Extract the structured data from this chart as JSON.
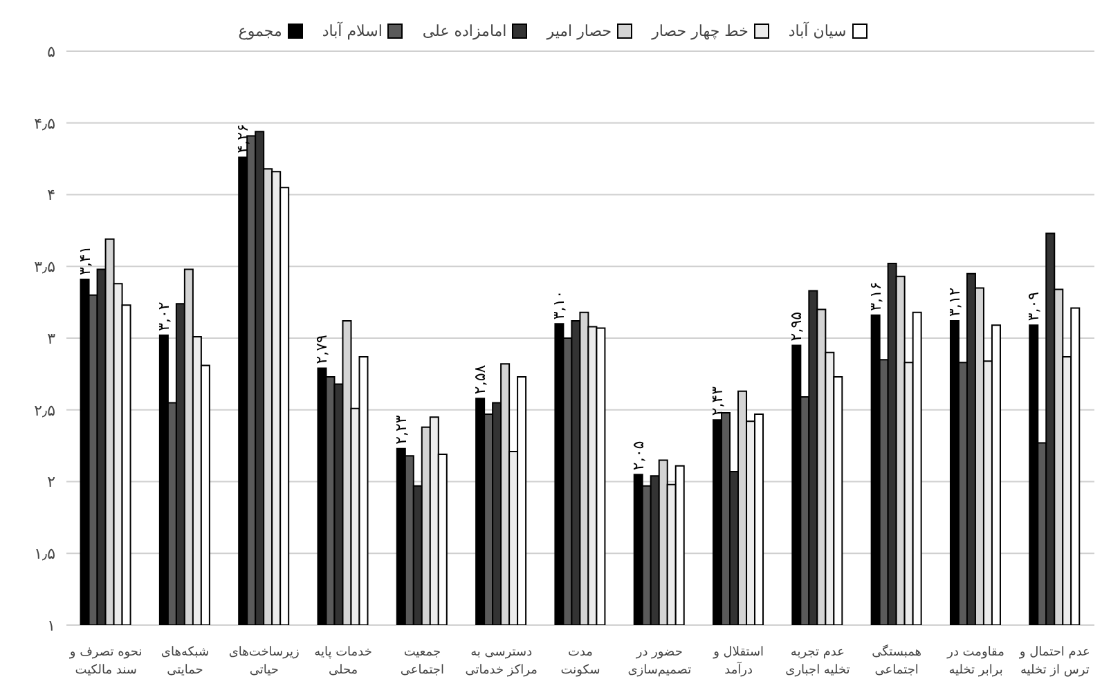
{
  "chart_data": {
    "type": "bar",
    "categories": [
      "نحوه تصرف و سند مالکیت",
      "شبکه‌های حمایتی",
      "زیرساخت‌های حیاتی",
      "خدمات پایه محلی",
      "جمعیت اجتماعی",
      "دسترسی به مراکز خدماتی",
      "مدت سکونت",
      "حضور در تصمیم‌سازی",
      "استقلال و درآمد",
      "عدم تجربه تخلیه اجباری",
      "همبستگی اجتماعی",
      "مقاومت در برابر تخلیه",
      "عدم احتمال و ترس از تخلیه"
    ],
    "series": [
      {
        "name": "مجموع",
        "color": "#000000",
        "values": [
          3.41,
          3.02,
          4.26,
          2.79,
          2.23,
          2.58,
          3.1,
          2.05,
          2.43,
          2.95,
          3.16,
          3.12,
          3.09
        ],
        "value_labels": [
          "۳,۴۱",
          "۳,۰۲",
          "۴,۲۶",
          "۲,۷۹",
          "۲,۲۳",
          "۲,۵۸",
          "۳,۱۰",
          "۲,۰۵",
          "۲,۴۳",
          "۲,۹۵",
          "۳,۱۶",
          "۳,۱۲",
          "۳,۰۹"
        ]
      },
      {
        "name": "اسلام آباد",
        "color": "#5a5a5a",
        "values": [
          3.3,
          2.55,
          4.41,
          2.73,
          2.18,
          2.47,
          3.0,
          1.97,
          2.48,
          2.59,
          2.85,
          2.83,
          2.27
        ]
      },
      {
        "name": "امامزاده علی",
        "color": "#333333",
        "values": [
          3.48,
          3.24,
          4.44,
          2.68,
          1.97,
          2.55,
          3.12,
          2.04,
          2.07,
          3.33,
          3.52,
          3.45,
          3.73
        ]
      },
      {
        "name": "حصار امیر",
        "color": "#d4d4d4",
        "values": [
          3.69,
          3.48,
          4.18,
          3.12,
          2.38,
          2.82,
          3.18,
          2.15,
          2.63,
          3.2,
          3.43,
          3.35,
          3.34
        ]
      },
      {
        "name": "خط چهار حصار",
        "color": "#ececec",
        "values": [
          3.38,
          3.01,
          4.16,
          2.51,
          2.45,
          2.21,
          3.08,
          1.98,
          2.42,
          2.9,
          2.83,
          2.84,
          2.87
        ]
      },
      {
        "name": "سیان آباد",
        "color": "#ffffff",
        "values": [
          3.23,
          2.81,
          4.05,
          2.87,
          2.19,
          2.73,
          3.07,
          2.11,
          2.47,
          2.73,
          3.18,
          3.09,
          3.21
        ]
      }
    ],
    "ylim": [
      1,
      5
    ],
    "yticks": [
      {
        "value": 1,
        "label": "۱"
      },
      {
        "value": 1.5,
        "label": "۱٫۵"
      },
      {
        "value": 2,
        "label": "۲"
      },
      {
        "value": 2.5,
        "label": "۲٫۵"
      },
      {
        "value": 3,
        "label": "۳"
      },
      {
        "value": 3.5,
        "label": "۳٫۵"
      },
      {
        "value": 4,
        "label": "۴"
      },
      {
        "value": 4.5,
        "label": "۴٫۵"
      },
      {
        "value": 5,
        "label": "۵"
      }
    ],
    "grid": "y",
    "legend": "top"
  }
}
